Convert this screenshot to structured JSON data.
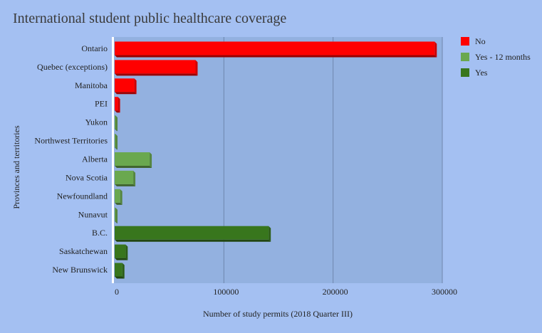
{
  "chart_data": {
    "type": "bar",
    "orientation": "horizontal",
    "title": "International student public healthcare coverage",
    "xlabel": "Number of study permits (2018 Quarter III)",
    "ylabel": "Provinces and territories",
    "xlim": [
      0,
      300000
    ],
    "x_ticks": [
      0,
      100000,
      200000,
      300000
    ],
    "x_tick_labels": [
      "0",
      "100000",
      "200000",
      "300000"
    ],
    "grid": true,
    "legend_position": "top-right",
    "categories": [
      "Ontario",
      "Quebec (exceptions)",
      "Manitoba",
      "PEI",
      "Yukon",
      "Northwest Territories",
      "Alberta",
      "Nova Scotia",
      "Newfoundland",
      "Nunavut",
      "B.C.",
      "Saskatchewan",
      "New Brunswick"
    ],
    "series": [
      {
        "name": "No",
        "color": "#ff0000",
        "values": [
          293000,
          74000,
          18000,
          3000,
          0,
          0,
          0,
          0,
          0,
          0,
          0,
          0,
          0
        ]
      },
      {
        "name": "Yes - 12 months",
        "color": "#6aa84f",
        "values": [
          0,
          0,
          0,
          0,
          600,
          500,
          32000,
          17000,
          5000,
          300,
          0,
          0,
          0
        ]
      },
      {
        "name": "Yes",
        "color": "#38761d",
        "values": [
          0,
          0,
          0,
          0,
          0,
          0,
          0,
          0,
          0,
          0,
          141000,
          10000,
          7000
        ]
      }
    ]
  }
}
